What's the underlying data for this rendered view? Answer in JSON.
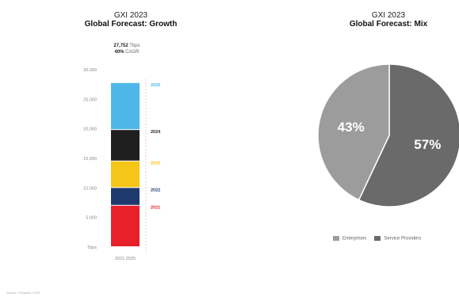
{
  "chart_data": [
    {
      "type": "bar",
      "title": "Global Forecast: Growth",
      "subtitle": "GXI 2023",
      "annotation_value": "27,752",
      "annotation_unit": "Tbps",
      "annotation_cagr_value": "40%",
      "annotation_cagr_label": "CAGR",
      "y_ticks": [
        "30,000",
        "25,000",
        "20,000",
        "15,000",
        "10,000",
        "5,000",
        "Tbps"
      ],
      "y_tick_values": [
        30000,
        25000,
        20000,
        15000,
        10000,
        5000,
        0
      ],
      "ylim": [
        0,
        30000
      ],
      "xlabel": "2021-2025",
      "segments": [
        {
          "label": "2021",
          "start": 0,
          "end": 7000,
          "color": "#e8202a"
        },
        {
          "label": "2022",
          "start": 7000,
          "end": 10000,
          "color": "#1e3a6e"
        },
        {
          "label": "2023",
          "start": 10000,
          "end": 14500,
          "color": "#f5c518"
        },
        {
          "label": "2024",
          "start": 14500,
          "end": 19800,
          "color": "#1f1f1f"
        },
        {
          "label": "2025",
          "start": 19800,
          "end": 27752,
          "color": "#4db8e8"
        }
      ]
    },
    {
      "type": "pie",
      "title": "Global Forecast: Mix",
      "subtitle": "GXI 2023",
      "slices": [
        {
          "name": "Service Providers",
          "value": 57,
          "label": "57%",
          "color": "#6a6a6a"
        },
        {
          "name": "Enterprises",
          "value": 43,
          "label": "43%",
          "color": "#9c9c9c"
        }
      ],
      "legend": [
        "Enterprises",
        "Service Providers"
      ],
      "legend_placement": "bottom"
    }
  ],
  "footer": "Source: ©Equinix, 2023"
}
